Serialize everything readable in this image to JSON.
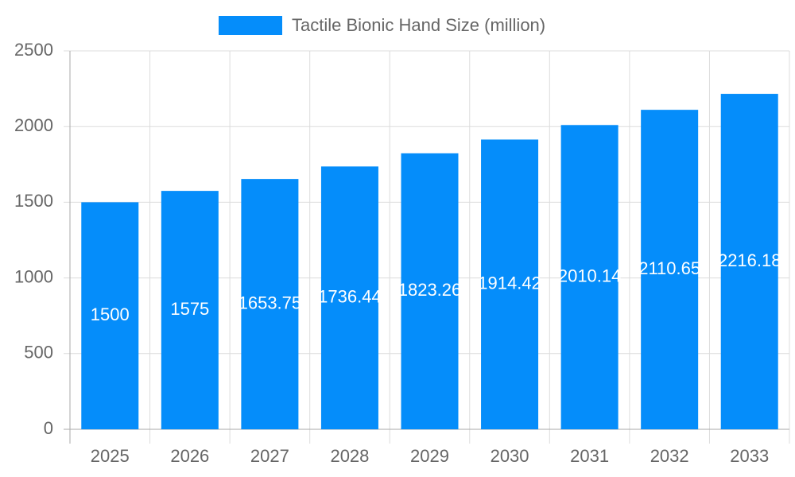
{
  "chart_data": {
    "type": "bar",
    "categories": [
      "2025",
      "2026",
      "2027",
      "2028",
      "2029",
      "2030",
      "2031",
      "2032",
      "2033"
    ],
    "series": [
      {
        "name": "Tactile Bionic Hand Size (million)",
        "color": "#058dfa",
        "values": [
          1500,
          1575,
          1653.75,
          1736.44,
          1823.26,
          1914.42,
          2010.14,
          2110.65,
          2216.18
        ]
      }
    ],
    "ylim": [
      0,
      2500
    ],
    "yticks": [
      0,
      500,
      1000,
      1500,
      2000,
      2500
    ],
    "grid": true,
    "legend": "top",
    "data_labels": true
  }
}
